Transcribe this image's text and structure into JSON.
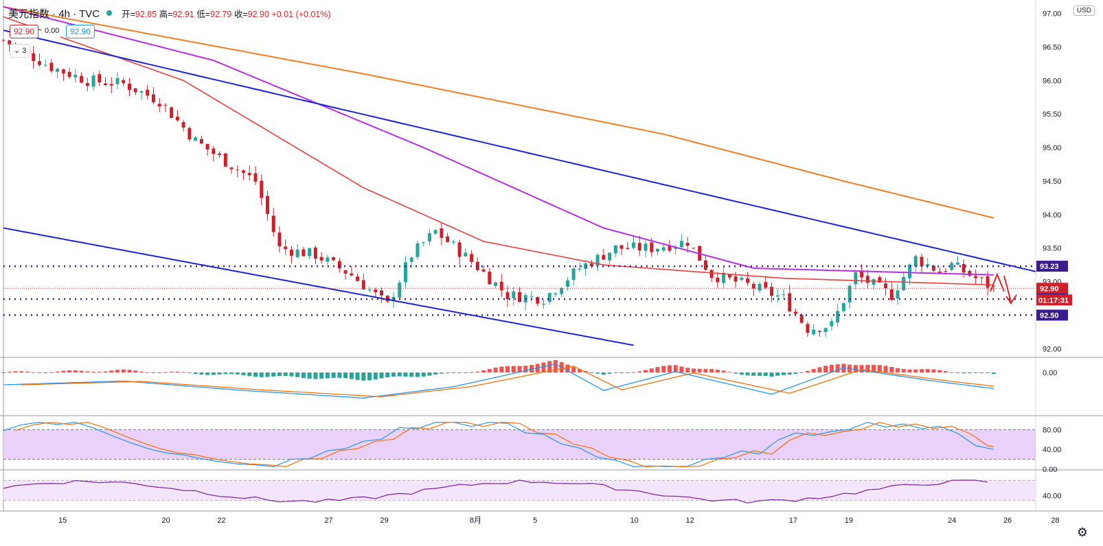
{
  "header": {
    "symbol": "美元指数 · 4h · TVC",
    "ohlc": {
      "open_label": "开=",
      "open": "92.85",
      "high_label": "高=",
      "high": "92.91",
      "low_label": "低=",
      "low": "92.79",
      "close_label": "收=",
      "close": "92.90",
      "change": "+0.01 (+0.01%)"
    },
    "price_badge_1": "92.90",
    "indicator_value": "0.00",
    "price_badge_2": "92.90",
    "collapse_label": "3",
    "currency": "USD"
  },
  "colors": {
    "up": "#26a69a",
    "down": "#cf1f2b",
    "ma_red": "#ef3b3b",
    "ma_purple": "#b62ee6",
    "ma_orange": "#f57c1f",
    "trend": "#1a23d6",
    "level": "#3b1d8f",
    "macd_blue": "#2196f3",
    "macd_orange": "#ff6d00",
    "stoch_fill": "#e3c6f7",
    "rsi": "#7b1fa2"
  },
  "price_axis": {
    "ticks": [
      "97.00",
      "96.50",
      "96.00",
      "95.50",
      "95.00",
      "94.50",
      "94.00",
      "93.50",
      "93.00",
      "92.50",
      "92.00"
    ],
    "ylim": [
      91.88,
      97.15
    ]
  },
  "level_labels": [
    {
      "value": 93.23,
      "text": "93.23",
      "color": "#3b1d8f"
    },
    {
      "value": 92.9,
      "text": "92.90",
      "color": "#cf1f2b"
    },
    {
      "value": 92.74,
      "text": "92.74",
      "color": "#3b1d8f"
    },
    {
      "value": 92.5,
      "text": "92.50",
      "color": "#3b1d8f"
    }
  ],
  "countdown": "01:17:31",
  "time_axis": [
    "15",
    "20",
    "22",
    "27",
    "29",
    "8月",
    "5",
    "10",
    "12",
    "17",
    "19",
    "24",
    "26",
    "28"
  ],
  "macd_axis": [
    "0.00"
  ],
  "stoch_axis": [
    "80.00",
    "40.00",
    "0.00"
  ],
  "rsi_axis": [
    "40.00"
  ],
  "chart_data": {
    "type": "candlestick",
    "interval": "4h",
    "instrument": "美元指数",
    "ylim": [
      91.88,
      97.15
    ],
    "close_path": [
      [
        0,
        96.6
      ],
      [
        8,
        96.2
      ],
      [
        14,
        96.0
      ],
      [
        20,
        95.95
      ],
      [
        26,
        95.7
      ],
      [
        32,
        95.1
      ],
      [
        36,
        94.85
      ],
      [
        42,
        94.5
      ],
      [
        46,
        93.5
      ],
      [
        52,
        93.4
      ],
      [
        58,
        93.1
      ],
      [
        64,
        92.65
      ],
      [
        68,
        93.4
      ],
      [
        72,
        93.75
      ],
      [
        78,
        93.3
      ],
      [
        84,
        92.8
      ],
      [
        90,
        92.75
      ],
      [
        96,
        93.2
      ],
      [
        102,
        93.5
      ],
      [
        108,
        93.5
      ],
      [
        114,
        93.6
      ],
      [
        118,
        93.1
      ],
      [
        124,
        92.95
      ],
      [
        130,
        92.75
      ],
      [
        134,
        92.3
      ],
      [
        138,
        92.35
      ],
      [
        142,
        93.1
      ],
      [
        148,
        92.8
      ],
      [
        152,
        93.35
      ],
      [
        156,
        93.15
      ],
      [
        158,
        93.25
      ],
      [
        162,
        93.05
      ],
      [
        165,
        92.9
      ]
    ],
    "ma_red": [
      [
        0,
        96.95
      ],
      [
        30,
        96.0
      ],
      [
        60,
        94.4
      ],
      [
        80,
        93.6
      ],
      [
        100,
        93.25
      ],
      [
        130,
        93.05
      ],
      [
        165,
        92.95
      ]
    ],
    "ma_purple": [
      [
        0,
        97.1
      ],
      [
        35,
        96.3
      ],
      [
        70,
        95.0
      ],
      [
        100,
        93.8
      ],
      [
        125,
        93.2
      ],
      [
        165,
        93.1
      ]
    ],
    "ma_orange": [
      [
        0,
        97.1
      ],
      [
        60,
        96.1
      ],
      [
        110,
        95.2
      ],
      [
        140,
        94.5
      ],
      [
        165,
        93.95
      ]
    ],
    "trend_upper": [
      [
        0,
        96.75
      ],
      [
        172,
        93.15
      ]
    ],
    "trend_lower": [
      [
        0,
        93.8
      ],
      [
        105,
        92.05
      ]
    ],
    "levels": [
      93.23,
      92.9,
      92.74,
      92.5
    ],
    "macd_hist": [
      [
        0,
        0
      ],
      [
        20,
        0.1
      ],
      [
        40,
        -0.15
      ],
      [
        60,
        -0.35
      ],
      [
        75,
        -0.05
      ],
      [
        92,
        0.55
      ],
      [
        100,
        -0.15
      ],
      [
        112,
        0.35
      ],
      [
        128,
        -0.25
      ],
      [
        140,
        0.45
      ],
      [
        155,
        0.1
      ],
      [
        165,
        -0.1
      ]
    ],
    "stoch_range": [
      0,
      100
    ],
    "stoch_bands": [
      20,
      80
    ],
    "rsi_band": [
      30,
      70
    ]
  }
}
